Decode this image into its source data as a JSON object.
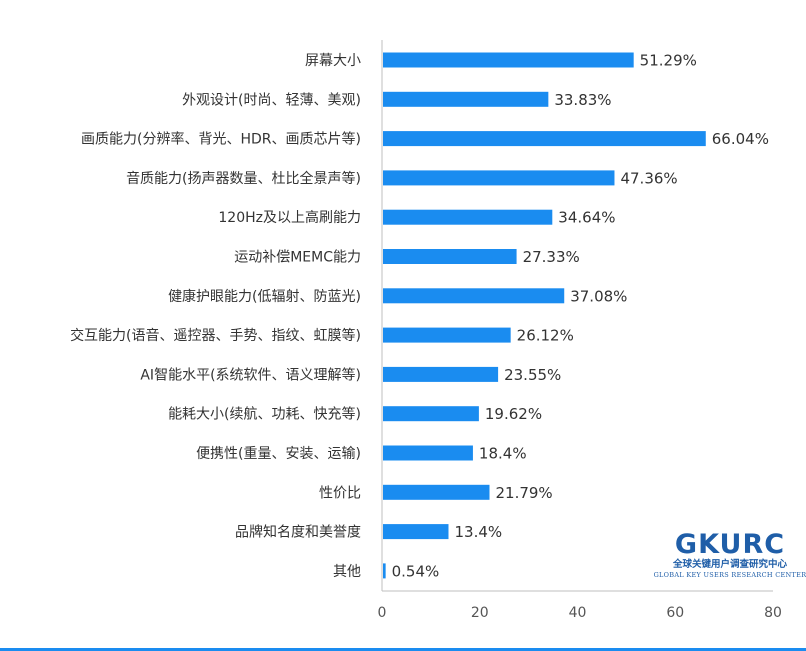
{
  "chart_data": {
    "type": "bar",
    "orientation": "horizontal",
    "categories": [
      "屏幕大小",
      "外观设计(时尚、轻薄、美观)",
      "画质能力(分辨率、背光、HDR、画质芯片等)",
      "音质能力(扬声器数量、杜比全景声等)",
      "120Hz及以上高刷能力",
      "运动补偿MEMC能力",
      "健康护眼能力(低辐射、防蓝光)",
      "交互能力(语音、遥控器、手势、指纹、虹膜等)",
      "AI智能水平(系统软件、语义理解等)",
      "能耗大小(续航、功耗、快充等)",
      "便携性(重量、安装、运输)",
      "性价比",
      "品牌知名度和美誉度",
      "其他"
    ],
    "values": [
      51.29,
      33.83,
      66.04,
      47.36,
      34.64,
      27.33,
      37.08,
      26.12,
      23.55,
      19.62,
      18.4,
      21.79,
      13.4,
      0.54
    ],
    "value_labels": [
      "51.29%",
      "33.83%",
      "66.04%",
      "47.36%",
      "34.64%",
      "27.33%",
      "37.08%",
      "26.12%",
      "23.55%",
      "19.62%",
      "18.4%",
      "21.79%",
      "13.4%",
      "0.54%"
    ],
    "xlim": [
      0,
      80
    ],
    "xticks": [
      "0",
      "20",
      "40",
      "60",
      "80"
    ],
    "grid": false,
    "bar_color": "#1a8cf0",
    "axis_color": "#bfbfbf"
  },
  "watermark": {
    "logo": "GKURC",
    "chinese": "全球关键用户调查研究中心",
    "english": "GLOBAL KEY USERS RESEARCH CENTER",
    "color": "#1f5ea8"
  },
  "footer_line_color": "#1a8cf0"
}
